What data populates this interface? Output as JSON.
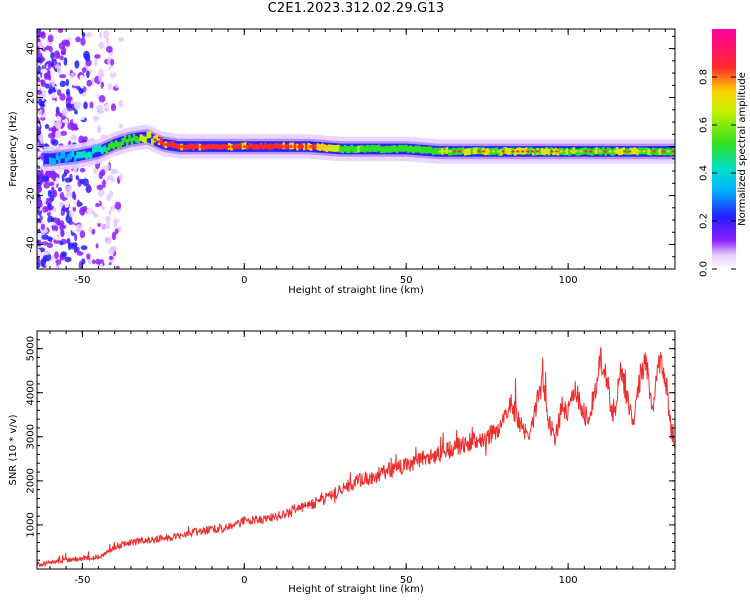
{
  "title": "C2E1.2023.312.02.29.G13",
  "colors": {
    "snr_line": "#ee2f2f",
    "frame": "#000000"
  },
  "chart_data": [
    {
      "type": "heatmap",
      "title": "C2E1.2023.312.02.29.G13",
      "xlabel": "Height of straight line (km)",
      "ylabel": "Frequency (Hz)",
      "xlim": [
        -64,
        133
      ],
      "ylim": [
        -50,
        48
      ],
      "x_ticks": [
        -50,
        0,
        50,
        100
      ],
      "y_ticks": [
        -40,
        -20,
        0,
        20,
        40
      ],
      "grid": false,
      "colorbar": {
        "label": "Normalized spectral amplitude",
        "range": [
          0,
          1
        ],
        "ticks": [
          "0.0",
          "0.2",
          "0.4",
          "0.6",
          "0.8"
        ],
        "colormap": "rainbow (white-purple-blue-cyan-green-yellow-red-magenta)"
      },
      "ridge": {
        "description": "Dominant frequency ridge vs height",
        "x": [
          -60,
          -52,
          -45,
          -40,
          -35,
          -30,
          -25,
          -20,
          -10,
          0,
          10,
          20,
          30,
          40,
          50,
          60,
          70,
          80,
          90,
          100,
          110,
          120,
          133
        ],
        "frequency_hz": [
          -5,
          -4,
          -2,
          1,
          3,
          4,
          1,
          0,
          0,
          0,
          0,
          0,
          -1,
          -1,
          -1,
          -2,
          -2,
          -2,
          -2,
          -2,
          -2,
          -2,
          -2
        ],
        "peak_amplitude": [
          0.15,
          0.25,
          0.3,
          0.45,
          0.5,
          0.6,
          0.85,
          0.95,
          0.95,
          0.95,
          0.95,
          0.9,
          0.6,
          0.5,
          0.45,
          0.55,
          0.6,
          0.6,
          0.6,
          0.55,
          0.55,
          0.6,
          0.55
        ]
      },
      "noise_region": {
        "x_range": [
          -64,
          -38
        ],
        "description": "Scattered low-amplitude (0.0-0.3) noise across all frequencies"
      }
    },
    {
      "type": "line",
      "xlabel": "Height of straight line (km)",
      "ylabel": "SNR (10 * v/v)",
      "xlim": [
        -64,
        133
      ],
      "ylim": [
        0,
        5400
      ],
      "x_ticks": [
        -50,
        0,
        50,
        100
      ],
      "y_ticks": [
        1000,
        2000,
        3000,
        4000,
        5000
      ],
      "grid": false,
      "x": [
        -64,
        -55,
        -48,
        -44,
        -40,
        -35,
        -30,
        -25,
        -20,
        -15,
        -10,
        -5,
        0,
        5,
        10,
        15,
        20,
        25,
        30,
        35,
        40,
        45,
        50,
        55,
        60,
        65,
        70,
        75,
        80,
        82,
        84,
        86,
        88,
        90,
        92,
        94,
        96,
        98,
        100,
        102,
        104,
        106,
        108,
        110,
        112,
        114,
        116,
        118,
        120,
        122,
        124,
        126,
        128,
        130,
        132,
        133
      ],
      "y": [
        100,
        200,
        250,
        300,
        500,
        600,
        650,
        700,
        750,
        850,
        900,
        950,
        1100,
        1100,
        1200,
        1300,
        1450,
        1600,
        1800,
        2000,
        2100,
        2250,
        2350,
        2500,
        2600,
        2750,
        2900,
        3000,
        3300,
        3800,
        3500,
        3200,
        2900,
        3700,
        4200,
        3400,
        2900,
        3700,
        3600,
        4100,
        3700,
        3400,
        3900,
        4800,
        4300,
        3300,
        4500,
        4000,
        3200,
        4200,
        4700,
        3600,
        4800,
        4400,
        3000,
        2900
      ]
    }
  ]
}
